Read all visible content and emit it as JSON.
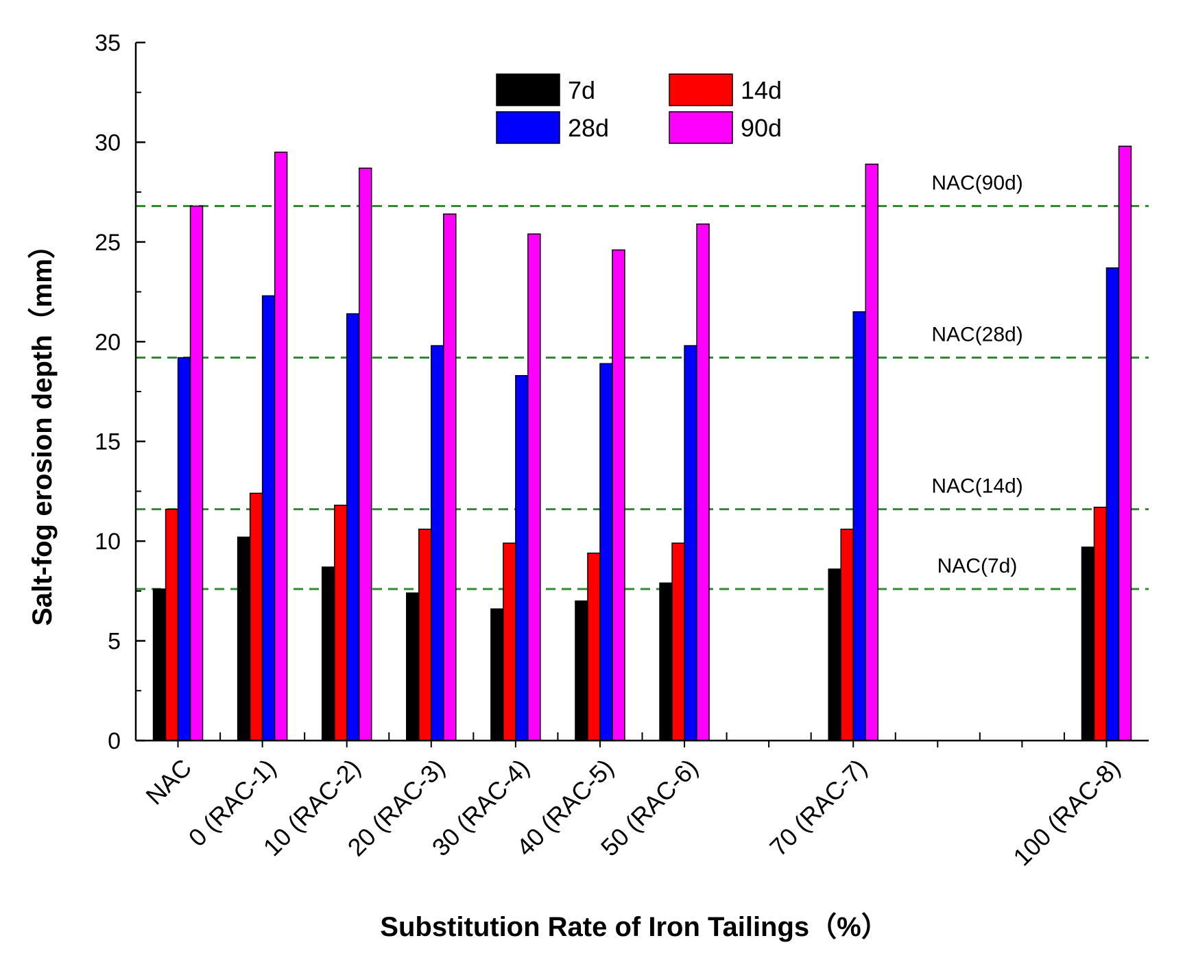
{
  "chart_data": {
    "type": "bar",
    "title": "",
    "xlabel": "Substitution Rate of Iron Tailings（%）",
    "ylabel": "Salt-fog erosion depth（mm）",
    "ylim": [
      0,
      35
    ],
    "yticks": [
      0,
      5,
      10,
      15,
      20,
      25,
      30,
      35
    ],
    "x_slots": 12,
    "categories": [
      {
        "label": "NAC",
        "slot": 0
      },
      {
        "label": "0 (RAC-1)",
        "slot": 1
      },
      {
        "label": "10 (RAC-2)",
        "slot": 2
      },
      {
        "label": "20 (RAC-3)",
        "slot": 3
      },
      {
        "label": "30 (RAC-4)",
        "slot": 4
      },
      {
        "label": "40 (RAC-5)",
        "slot": 5
      },
      {
        "label": "50 (RAC-6)",
        "slot": 6
      },
      {
        "label": "70 (RAC-7)",
        "slot": 8
      },
      {
        "label": "100 (RAC-8)",
        "slot": 11
      }
    ],
    "series": [
      {
        "name": "7d",
        "color": "#000000",
        "values": [
          7.6,
          10.2,
          8.7,
          7.4,
          6.6,
          7.0,
          7.9,
          8.6,
          9.7
        ]
      },
      {
        "name": "14d",
        "color": "#ff0000",
        "values": [
          11.6,
          12.4,
          11.8,
          10.6,
          9.9,
          9.4,
          9.9,
          10.6,
          11.7
        ]
      },
      {
        "name": "28d",
        "color": "#0000ff",
        "values": [
          19.2,
          22.3,
          21.4,
          19.8,
          18.3,
          18.9,
          19.8,
          21.5,
          23.7
        ]
      },
      {
        "name": "90d",
        "color": "#ff00ff",
        "values": [
          26.8,
          29.5,
          28.7,
          26.4,
          25.4,
          24.6,
          25.9,
          28.9,
          29.8
        ]
      }
    ],
    "reference_lines": [
      {
        "label": "NAC(90d)",
        "value": 26.8
      },
      {
        "label": "NAC(28d)",
        "value": 19.2
      },
      {
        "label": "NAC(14d)",
        "value": 11.6
      },
      {
        "label": "NAC(7d)",
        "value": 7.6
      }
    ],
    "reference_line_color": "#2e8b2e",
    "legend": {
      "placement": "top-center",
      "columns": 2,
      "order": [
        "7d",
        "14d",
        "28d",
        "90d"
      ]
    }
  }
}
